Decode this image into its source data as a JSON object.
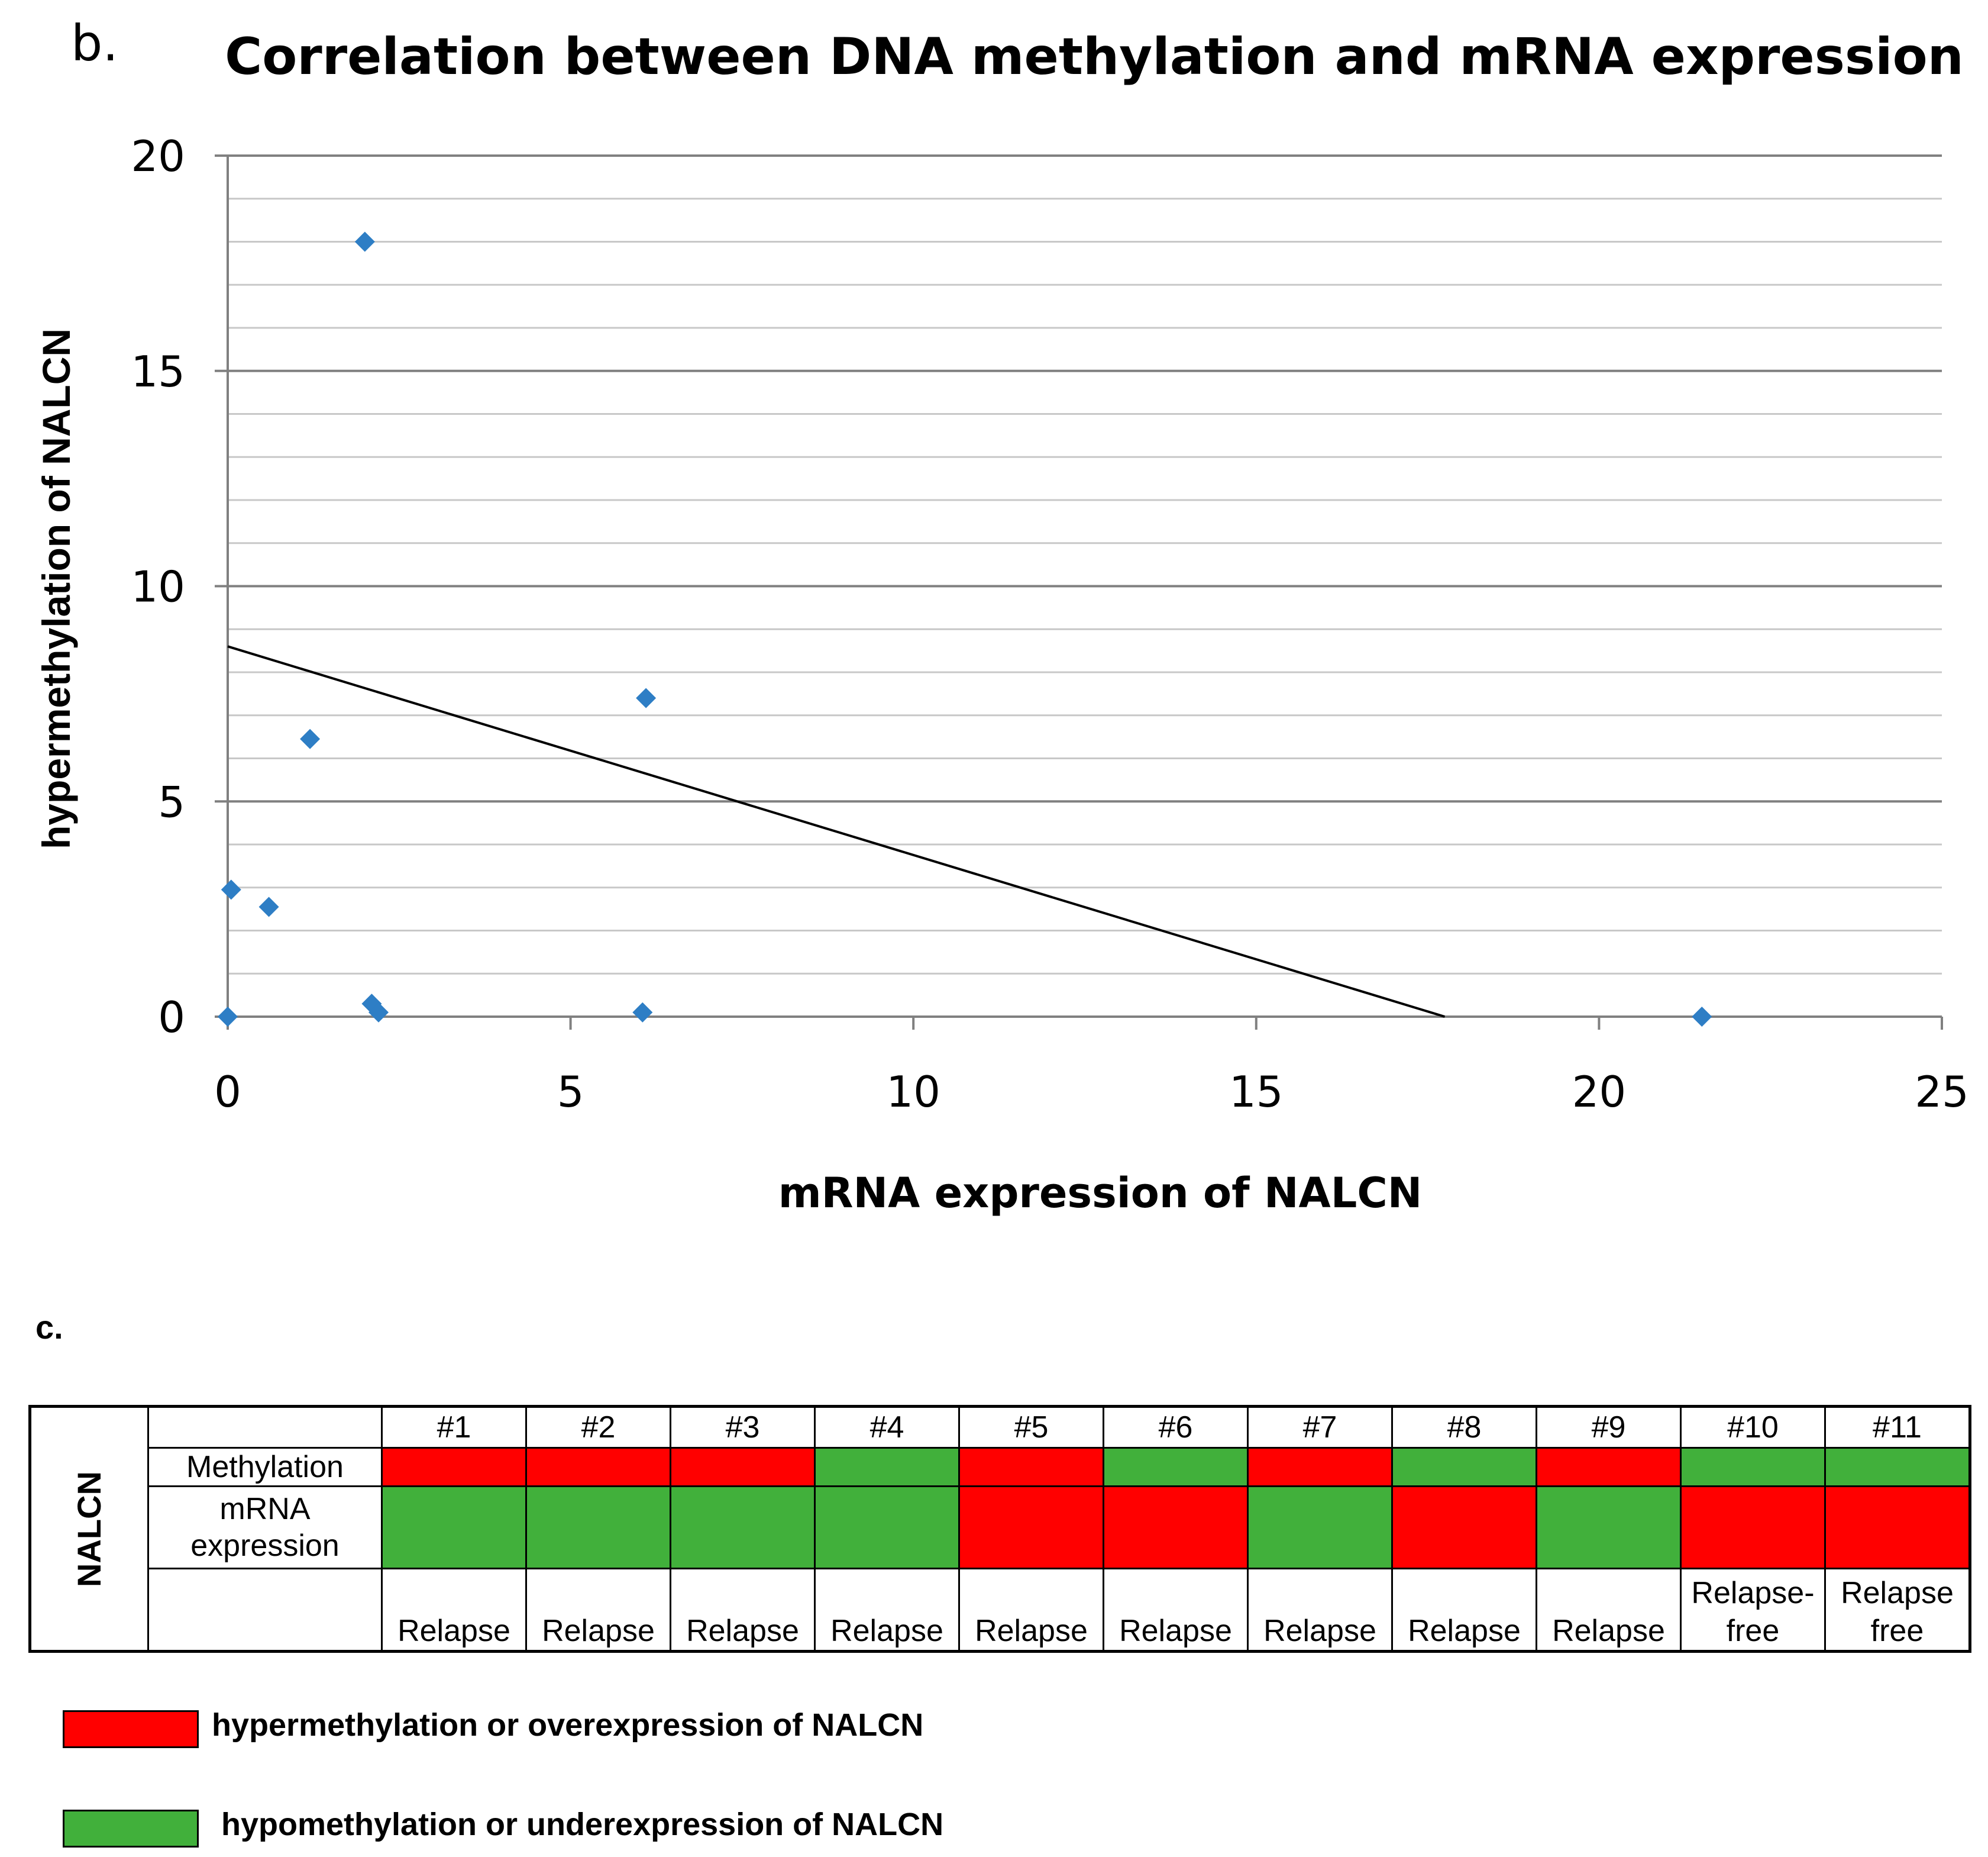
{
  "panel_b_label": "b.",
  "panel_c_label": "c.",
  "colors": {
    "hyper": "#ff0000",
    "hypo": "#41b03b",
    "marker": "#2e7ec5"
  },
  "chart_data": {
    "type": "scatter",
    "title": "Correlation between DNA methylation and mRNA expression",
    "xlabel": "mRNA expression of NALCN",
    "ylabel": "hypermethylation of NALCN",
    "xlim": [
      0,
      25
    ],
    "ylim": [
      0,
      20
    ],
    "xticks": [
      0,
      5,
      10,
      15,
      20,
      25
    ],
    "yticks": [
      0,
      5,
      10,
      15,
      20
    ],
    "grid": true,
    "points": [
      {
        "x": 2.0,
        "y": 18.0
      },
      {
        "x": 6.1,
        "y": 7.4
      },
      {
        "x": 1.2,
        "y": 6.45
      },
      {
        "x": 0.05,
        "y": 2.95
      },
      {
        "x": 0.6,
        "y": 2.55
      },
      {
        "x": 2.1,
        "y": 0.3
      },
      {
        "x": 2.2,
        "y": 0.1
      },
      {
        "x": 0.0,
        "y": 0.0
      },
      {
        "x": 6.05,
        "y": 0.1
      },
      {
        "x": 21.5,
        "y": 0.0
      }
    ],
    "trendline": {
      "x": [
        0,
        17.75
      ],
      "y": [
        8.6,
        0
      ]
    }
  },
  "table": {
    "gene": "NALCN",
    "columns": [
      "#1",
      "#2",
      "#3",
      "#4",
      "#5",
      "#6",
      "#7",
      "#8",
      "#9",
      "#10",
      "#11"
    ],
    "methylation_label": "Methylation",
    "expression_label": "mRNA expression",
    "methylation": [
      "hyper",
      "hyper",
      "hyper",
      "hypo",
      "hyper",
      "hypo",
      "hyper",
      "hypo",
      "hyper",
      "hypo",
      "hypo"
    ],
    "expression": [
      "hypo",
      "hypo",
      "hypo",
      "hypo",
      "hyper",
      "hyper",
      "hypo",
      "hyper",
      "hypo",
      "hyper",
      "hyper"
    ],
    "outcome": [
      "Relapse",
      "Relapse",
      "Relapse",
      "Relapse",
      "Relapse",
      "Relapse",
      "Relapse",
      "Relapse",
      "Relapse",
      "Relapse- free",
      "Relapse free"
    ]
  },
  "legend": [
    {
      "label": "hypermethylation or overexpression of NALCN",
      "state": "hyper"
    },
    {
      "label": "hypomethylation or underexpression of NALCN",
      "state": "hypo"
    }
  ]
}
